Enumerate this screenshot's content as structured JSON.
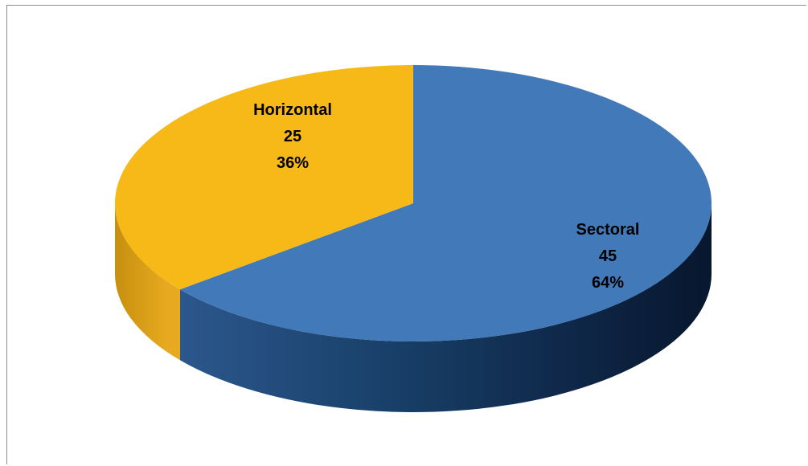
{
  "chart_data": {
    "type": "pie",
    "style": "3d",
    "slices": [
      {
        "name": "Horizontal",
        "value": 25,
        "percent": "36%",
        "color": "#F6B918",
        "side_color": "#D99E16"
      },
      {
        "name": "Sectoral",
        "value": 45,
        "percent": "64%",
        "color": "#4279B8",
        "side_color": "#1D3E66"
      }
    ],
    "labels": [
      {
        "category": "Horizontal",
        "value": "25",
        "percent": "36%"
      },
      {
        "category": "Sectoral",
        "value": "45",
        "percent": "64%"
      }
    ],
    "title": "",
    "legend": "none"
  }
}
